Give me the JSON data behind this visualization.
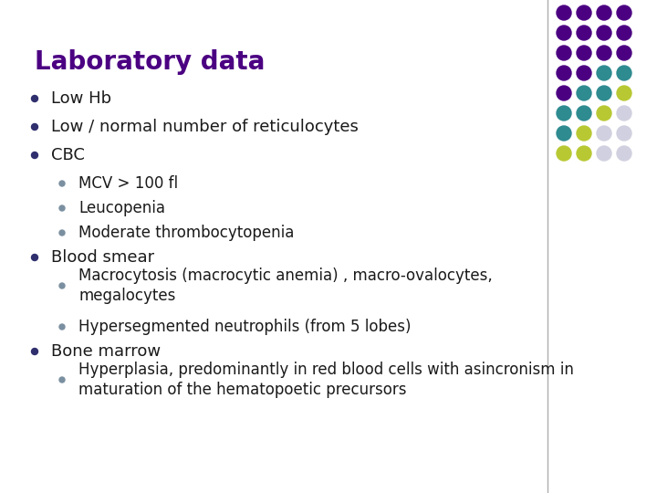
{
  "title": "Laboratory data",
  "title_color": "#4B0082",
  "title_fontsize": 20,
  "background_color": "#FFFFFF",
  "bullet_color": "#2F2F6E",
  "sub_bullet_color": "#7A8FA0",
  "text_color": "#1A1A1A",
  "line_color": "#999999",
  "bullets": [
    {
      "level": 1,
      "text": "Low Hb",
      "lines": 1
    },
    {
      "level": 1,
      "text": "Low / normal number of reticulocytes",
      "lines": 1
    },
    {
      "level": 1,
      "text": "CBC",
      "lines": 1
    },
    {
      "level": 2,
      "text": "MCV > 100 fl",
      "lines": 1
    },
    {
      "level": 2,
      "text": "Leucopenia",
      "lines": 1
    },
    {
      "level": 2,
      "text": "Moderate thrombocytopenia",
      "lines": 1
    },
    {
      "level": 1,
      "text": "Blood smear",
      "lines": 1
    },
    {
      "level": 2,
      "text": "Macrocytosis (macrocytic anemia) , macro-ovalocytes,\nmegalocytes",
      "lines": 2
    },
    {
      "level": 2,
      "text": "Hypersegmented neutrophils (from 5 lobes)",
      "lines": 1
    },
    {
      "level": 1,
      "text": "Bone marrow",
      "lines": 1
    },
    {
      "level": 2,
      "text": "Hyperplasia, predominantly in red blood cells with asincronism in\nmaturation of the hematopoetic precursors",
      "lines": 2
    }
  ],
  "dot_grid": {
    "colors": [
      [
        "#4B0082",
        "#4B0082",
        "#4B0082",
        "#4B0082"
      ],
      [
        "#4B0082",
        "#4B0082",
        "#4B0082",
        "#4B0082"
      ],
      [
        "#4B0082",
        "#4B0082",
        "#4B0082",
        "#4B0082"
      ],
      [
        "#4B0082",
        "#4B0082",
        "#2E8B90",
        "#2E8B90"
      ],
      [
        "#4B0082",
        "#2E8B90",
        "#2E8B90",
        "#B8C832"
      ],
      [
        "#2E8B90",
        "#2E8B90",
        "#B8C832",
        "#D0D0E0"
      ],
      [
        "#2E8B90",
        "#B8C832",
        "#D0D0E0",
        "#D0D0E0"
      ],
      [
        "#B8C832",
        "#B8C832",
        "#D0D0E0",
        "#D0D0E0"
      ]
    ]
  }
}
